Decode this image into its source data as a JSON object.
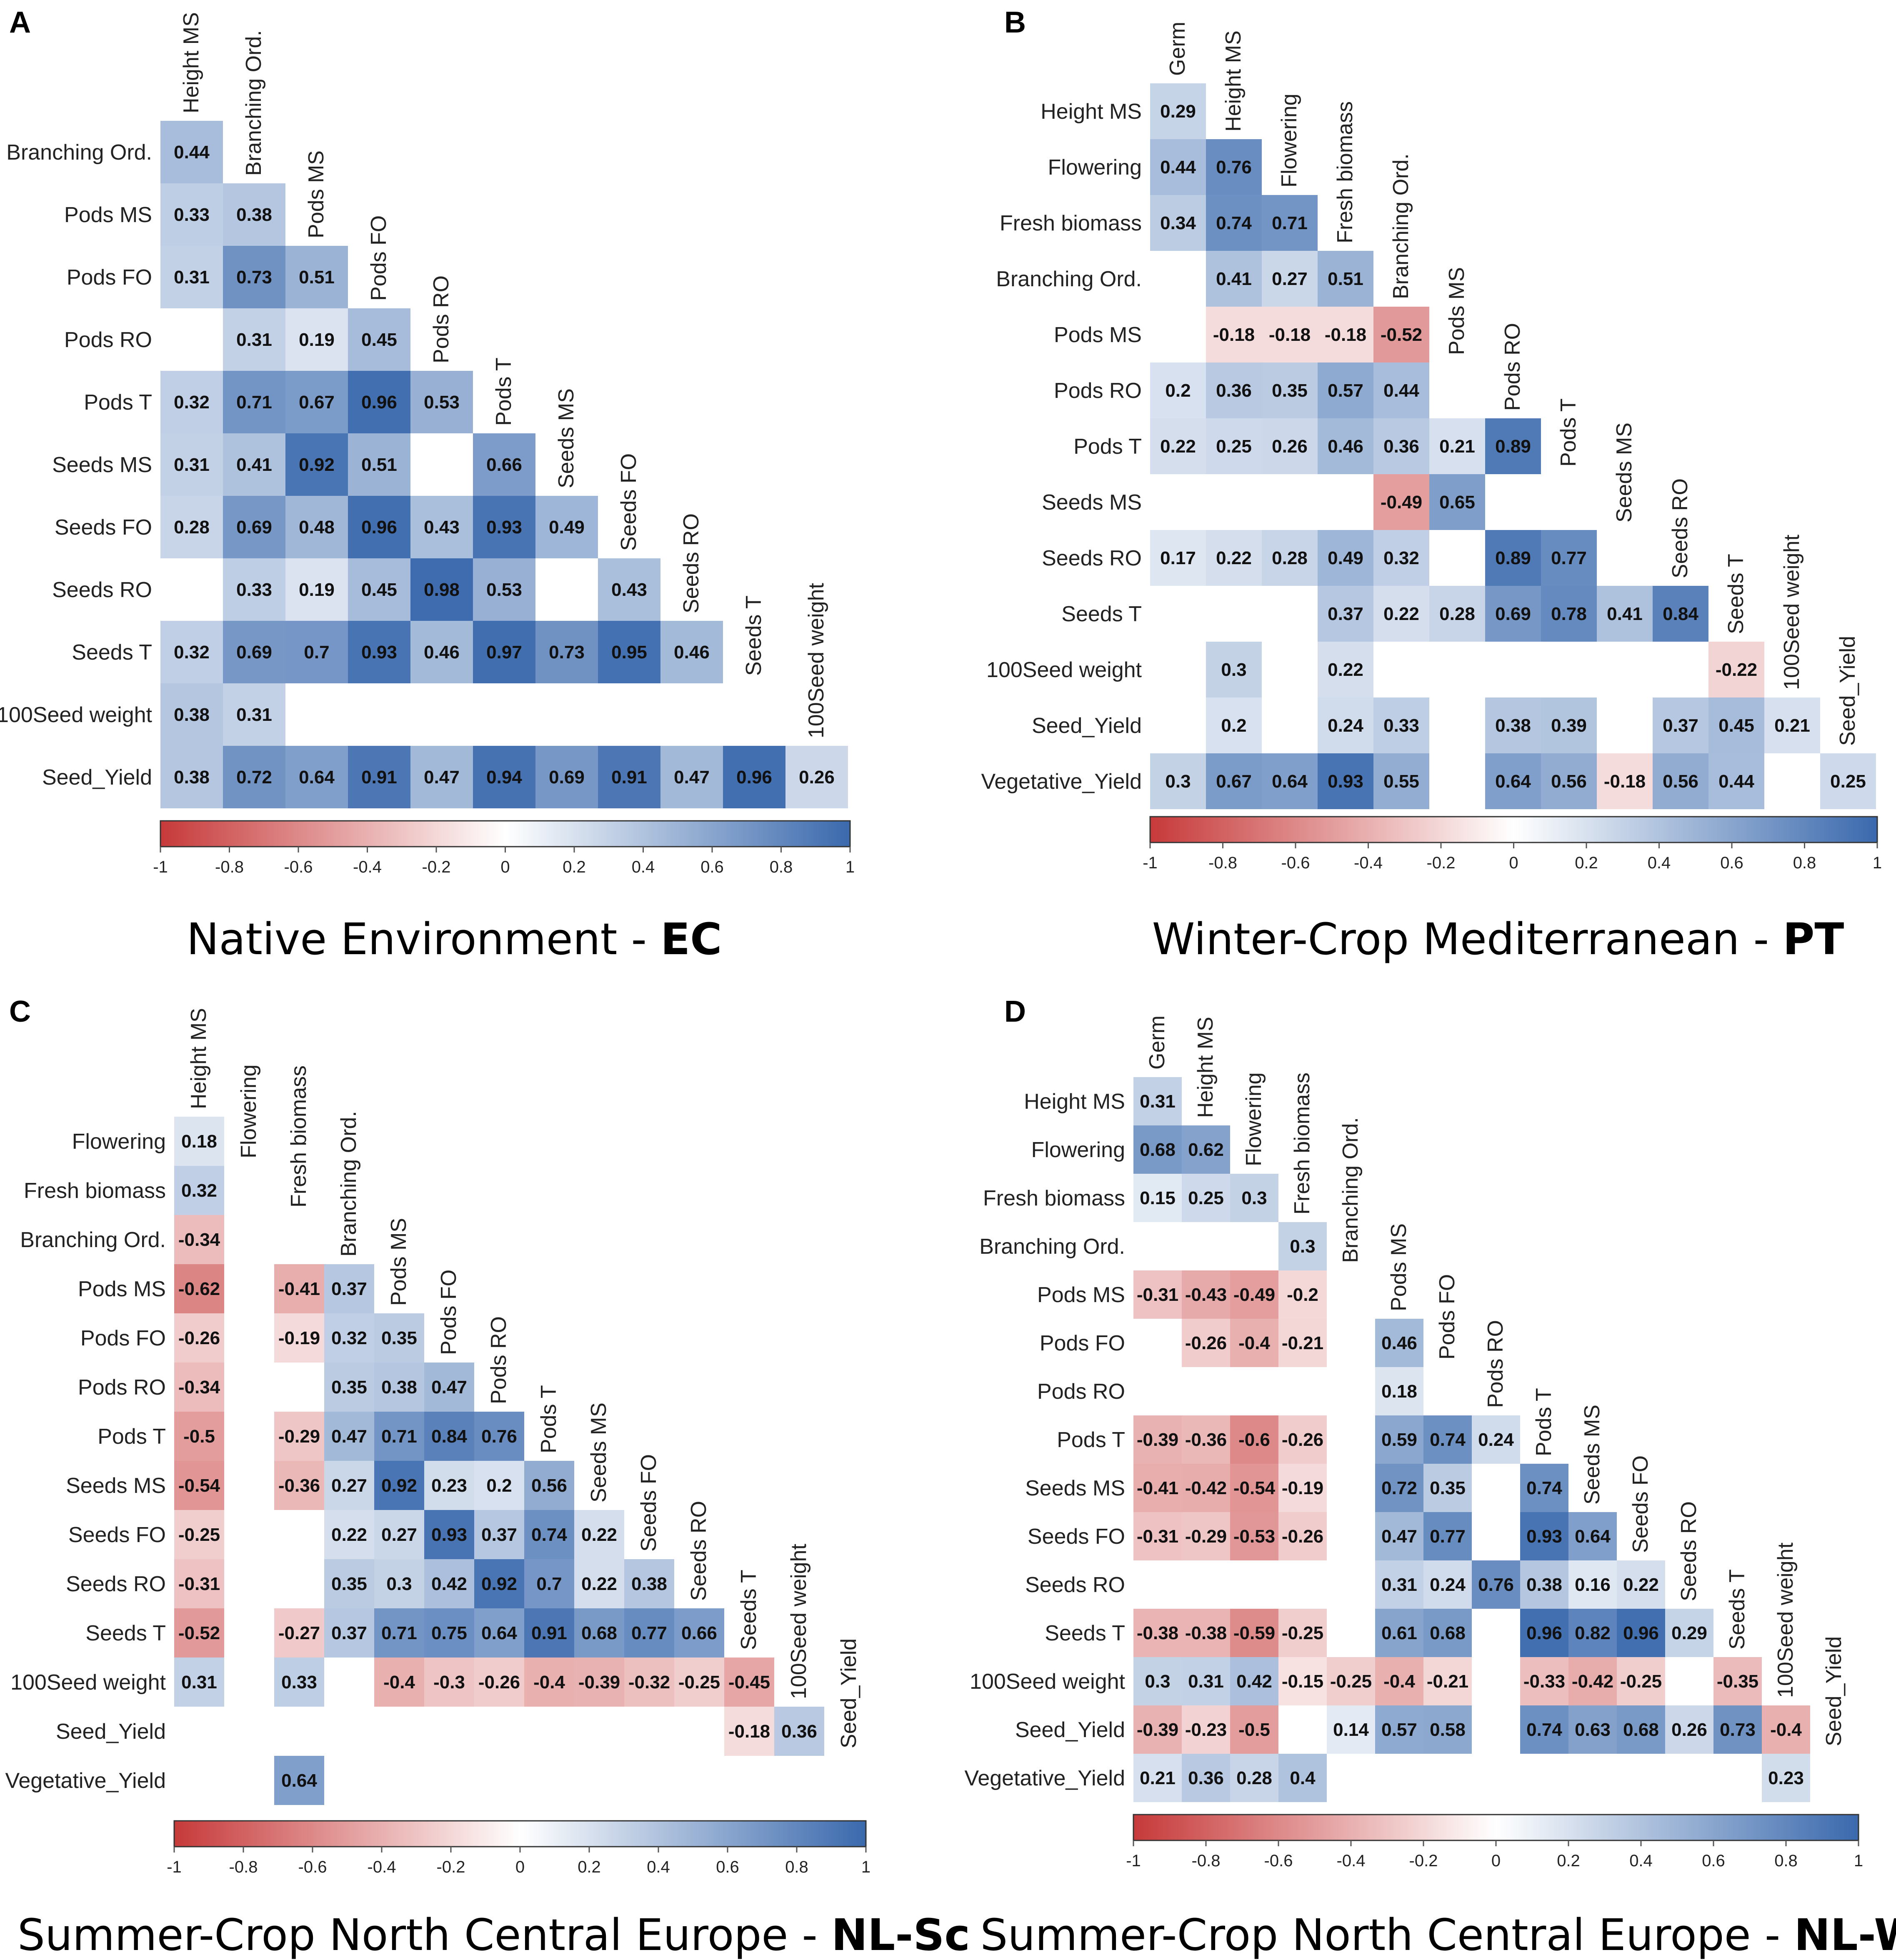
{
  "colors": {
    "negative": "#c73a3a",
    "zero": "#ffffff",
    "positive": "#3a69ad"
  },
  "chart_data": [
    {
      "type": "heatmap",
      "panel": "A",
      "title": "Native Environment - ",
      "env": "EC",
      "columns": [
        "Height MS",
        "Branching Ord.",
        "Pods MS",
        "Pods FO",
        "Pods RO",
        "Pods T",
        "Seeds MS",
        "Seeds FO",
        "Seeds RO",
        "Seeds T",
        "100Seed weight"
      ],
      "rows": [
        "Branching Ord.",
        "Pods MS",
        "Pods FO",
        "Pods RO",
        "Pods T",
        "Seeds MS",
        "Seeds FO",
        "Seeds RO",
        "Seeds T",
        "100Seed weight",
        "Seed_Yield"
      ],
      "values": [
        [
          0.44
        ],
        [
          0.33,
          0.38
        ],
        [
          0.31,
          0.73,
          0.51
        ],
        [
          null,
          0.31,
          0.19,
          0.45
        ],
        [
          0.32,
          0.71,
          0.67,
          0.96,
          0.53
        ],
        [
          0.31,
          0.41,
          0.92,
          0.51,
          null,
          0.66
        ],
        [
          0.28,
          0.69,
          0.48,
          0.96,
          0.43,
          0.93,
          0.49
        ],
        [
          null,
          0.33,
          0.19,
          0.45,
          0.98,
          0.53,
          null,
          0.43
        ],
        [
          0.32,
          0.69,
          0.7,
          0.93,
          0.46,
          0.97,
          0.73,
          0.95,
          0.46
        ],
        [
          0.38,
          0.31,
          null,
          null,
          null,
          null,
          null,
          null,
          null,
          null
        ],
        [
          0.38,
          0.72,
          0.64,
          0.91,
          0.47,
          0.94,
          0.69,
          0.91,
          0.47,
          0.96,
          0.26
        ]
      ],
      "colorbar": {
        "range": [
          -1,
          1
        ],
        "ticks": [
          "-1",
          "-0.8",
          "-0.6",
          "-0.4",
          "-0.2",
          "0",
          "0.2",
          "0.4",
          "0.6",
          "0.8",
          "1"
        ]
      }
    },
    {
      "type": "heatmap",
      "panel": "B",
      "title": "Winter-Crop Mediterranean - ",
      "env": "PT",
      "columns": [
        "Germ",
        "Height MS",
        "Flowering",
        "Fresh biomass",
        "Branching Ord.",
        "Pods MS",
        "Pods RO",
        "Pods T",
        "Seeds MS",
        "Seeds RO",
        "Seeds T",
        "100Seed weight",
        "Seed_Yield"
      ],
      "rows": [
        "Height MS",
        "Flowering",
        "Fresh biomass",
        "Branching Ord.",
        "Pods MS",
        "Pods RO",
        "Pods T",
        "Seeds MS",
        "Seeds RO",
        "Seeds T",
        "100Seed weight",
        "Seed_Yield",
        "Vegetative_Yield"
      ],
      "values": [
        [
          0.29
        ],
        [
          0.44,
          0.76
        ],
        [
          0.34,
          0.74,
          0.71
        ],
        [
          null,
          0.41,
          0.27,
          0.51
        ],
        [
          null,
          -0.18,
          -0.18,
          -0.18,
          -0.52
        ],
        [
          0.2,
          0.36,
          0.35,
          0.57,
          0.44,
          null
        ],
        [
          0.22,
          0.25,
          0.26,
          0.46,
          0.36,
          0.21,
          0.89
        ],
        [
          null,
          null,
          null,
          null,
          -0.49,
          0.65,
          null,
          null
        ],
        [
          0.17,
          0.22,
          0.28,
          0.49,
          0.32,
          null,
          0.89,
          0.77,
          null
        ],
        [
          null,
          null,
          null,
          0.37,
          0.22,
          0.28,
          0.69,
          0.78,
          0.41,
          0.84
        ],
        [
          null,
          0.3,
          null,
          0.22,
          null,
          null,
          null,
          null,
          null,
          null,
          -0.22
        ],
        [
          null,
          0.2,
          null,
          0.24,
          0.33,
          null,
          0.38,
          0.39,
          null,
          0.37,
          0.45,
          0.21
        ],
        [
          0.3,
          0.67,
          0.64,
          0.93,
          0.55,
          null,
          0.64,
          0.56,
          -0.18,
          0.56,
          0.44,
          null,
          0.25
        ]
      ],
      "colorbar": {
        "range": [
          -1,
          1
        ],
        "ticks": [
          "-1",
          "-0.8",
          "-0.6",
          "-0.4",
          "-0.2",
          "0",
          "0.2",
          "0.4",
          "0.6",
          "0.8",
          "1"
        ]
      }
    },
    {
      "type": "heatmap",
      "panel": "C",
      "title": "Summer-Crop North Central Europe - ",
      "env": "NL-Sc",
      "columns": [
        "Height MS",
        "Flowering",
        "Fresh biomass",
        "Branching Ord.",
        "Pods MS",
        "Pods FO",
        "Pods RO",
        "Pods T",
        "Seeds MS",
        "Seeds FO",
        "Seeds RO",
        "Seeds T",
        "100Seed weight",
        "Seed_Yield"
      ],
      "rows": [
        "Flowering",
        "Fresh biomass",
        "Branching Ord.",
        "Pods MS",
        "Pods FO",
        "Pods RO",
        "Pods T",
        "Seeds MS",
        "Seeds FO",
        "Seeds RO",
        "Seeds T",
        "100Seed weight",
        "Seed_Yield",
        "Vegetative_Yield"
      ],
      "values": [
        [
          0.18
        ],
        [
          0.32,
          null
        ],
        [
          -0.34,
          null,
          null
        ],
        [
          -0.62,
          null,
          -0.41,
          0.37
        ],
        [
          -0.26,
          null,
          -0.19,
          0.32,
          0.35
        ],
        [
          -0.34,
          null,
          null,
          0.35,
          0.38,
          0.47
        ],
        [
          -0.5,
          null,
          -0.29,
          0.47,
          0.71,
          0.84,
          0.76
        ],
        [
          -0.54,
          null,
          -0.36,
          0.27,
          0.92,
          0.23,
          0.2,
          0.56
        ],
        [
          -0.25,
          null,
          null,
          0.22,
          0.27,
          0.93,
          0.37,
          0.74,
          0.22
        ],
        [
          -0.31,
          null,
          null,
          0.35,
          0.3,
          0.42,
          0.92,
          0.7,
          0.22,
          0.38
        ],
        [
          -0.52,
          null,
          -0.27,
          0.37,
          0.71,
          0.75,
          0.64,
          0.91,
          0.68,
          0.77,
          0.66
        ],
        [
          0.31,
          null,
          0.33,
          null,
          -0.4,
          -0.3,
          -0.26,
          -0.4,
          -0.39,
          -0.32,
          -0.25,
          -0.45
        ],
        [
          null,
          null,
          null,
          null,
          null,
          null,
          null,
          null,
          null,
          null,
          null,
          -0.18,
          0.36
        ],
        [
          null,
          null,
          0.64,
          null,
          null,
          null,
          null,
          null,
          null,
          null,
          null,
          null,
          null,
          null
        ]
      ],
      "colorbar": {
        "range": [
          -1,
          1
        ],
        "ticks": [
          "-1",
          "-0.8",
          "-0.6",
          "-0.4",
          "-0.2",
          "0",
          "0.2",
          "0.4",
          "0.6",
          "0.8",
          "1"
        ]
      }
    },
    {
      "type": "heatmap",
      "panel": "D",
      "title": "Summer-Crop North Central Europe - ",
      "env": "NL-Wi",
      "columns": [
        "Germ",
        "Height MS",
        "Flowering",
        "Fresh biomass",
        "Branching Ord.",
        "Pods MS",
        "Pods FO",
        "Pods RO",
        "Pods T",
        "Seeds MS",
        "Seeds FO",
        "Seeds RO",
        "Seeds T",
        "100Seed weight",
        "Seed_Yield"
      ],
      "rows": [
        "Height MS",
        "Flowering",
        "Fresh biomass",
        "Branching Ord.",
        "Pods MS",
        "Pods FO",
        "Pods RO",
        "Pods T",
        "Seeds MS",
        "Seeds FO",
        "Seeds RO",
        "Seeds T",
        "100Seed weight",
        "Seed_Yield",
        "Vegetative_Yield"
      ],
      "values": [
        [
          0.31
        ],
        [
          0.68,
          0.62
        ],
        [
          0.15,
          0.25,
          0.3
        ],
        [
          null,
          null,
          null,
          0.3
        ],
        [
          -0.31,
          -0.43,
          -0.49,
          -0.2,
          null
        ],
        [
          null,
          -0.26,
          -0.4,
          -0.21,
          null,
          0.46
        ],
        [
          null,
          null,
          null,
          null,
          null,
          0.18,
          null
        ],
        [
          -0.39,
          -0.36,
          -0.6,
          -0.26,
          null,
          0.59,
          0.74,
          0.24
        ],
        [
          -0.41,
          -0.42,
          -0.54,
          -0.19,
          null,
          0.72,
          0.35,
          null,
          0.74
        ],
        [
          -0.31,
          -0.29,
          -0.53,
          -0.26,
          null,
          0.47,
          0.77,
          null,
          0.93,
          0.64
        ],
        [
          null,
          null,
          null,
          null,
          null,
          0.31,
          0.24,
          0.76,
          0.38,
          0.16,
          0.22
        ],
        [
          -0.38,
          -0.38,
          -0.59,
          -0.25,
          null,
          0.61,
          0.68,
          null,
          0.96,
          0.82,
          0.96,
          0.29
        ],
        [
          0.3,
          0.31,
          0.42,
          -0.15,
          -0.25,
          -0.4,
          -0.21,
          null,
          -0.33,
          -0.42,
          -0.25,
          null,
          -0.35
        ],
        [
          -0.39,
          -0.23,
          -0.5,
          null,
          0.14,
          0.57,
          0.58,
          null,
          0.74,
          0.63,
          0.68,
          0.26,
          0.73,
          -0.4
        ],
        [
          0.21,
          0.36,
          0.28,
          0.4,
          null,
          null,
          null,
          null,
          null,
          null,
          null,
          null,
          null,
          0.23,
          null
        ]
      ],
      "colorbar": {
        "range": [
          -1,
          1
        ],
        "ticks": [
          "-1",
          "-0.8",
          "-0.6",
          "-0.4",
          "-0.2",
          "0",
          "0.2",
          "0.4",
          "0.6",
          "0.8",
          "1"
        ]
      }
    }
  ]
}
